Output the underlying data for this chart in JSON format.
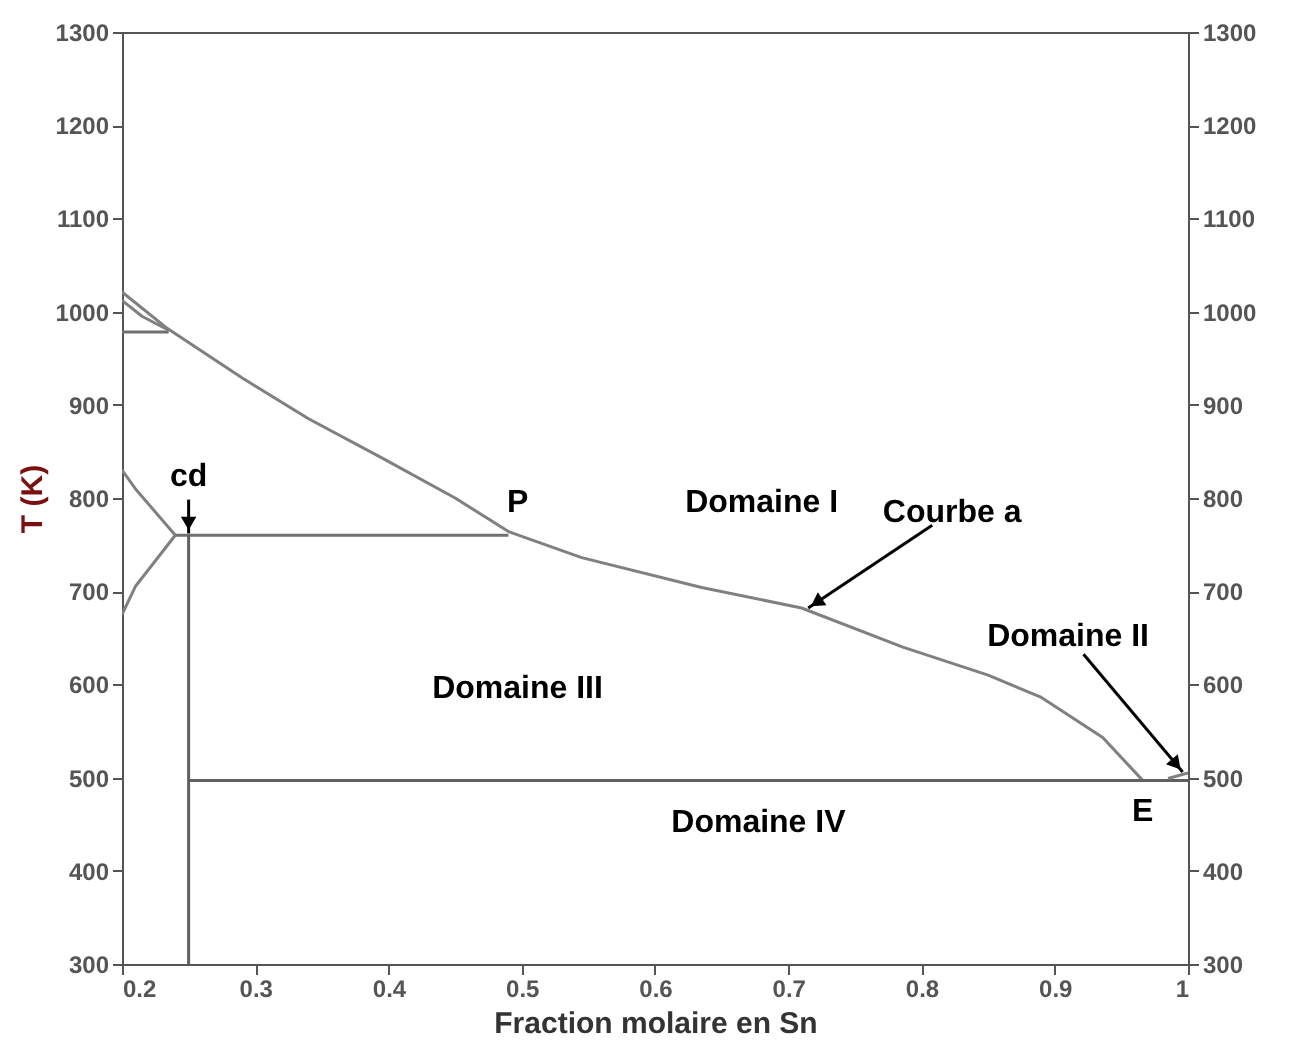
{
  "chart_data": {
    "type": "line",
    "xlabel": "Fraction molaire en Sn",
    "ylabel": "T (K)",
    "xlim": [
      0.2,
      1.0
    ],
    "xticks": [
      0.2,
      0.3,
      0.4,
      0.5,
      0.6,
      0.7,
      0.8,
      0.9,
      1
    ],
    "ylim": [
      300,
      1300
    ],
    "yticks": [
      300,
      400,
      500,
      600,
      700,
      800,
      900,
      1000,
      1100,
      1200,
      1300
    ],
    "y2lim": [
      300,
      1300
    ],
    "y2ticks": [
      300,
      400,
      500,
      600,
      700,
      800,
      900,
      1000,
      1100,
      1200,
      1300
    ],
    "grid": false,
    "series": [
      {
        "color": "#808080",
        "x": [
          0.2,
          0.233,
          0.29,
          0.34,
          0.395,
          0.45,
          0.49,
          0.545,
          0.635,
          0.71,
          0.786,
          0.85,
          0.89,
          0.936,
          0.966
        ],
        "values": [
          1021,
          983,
          929,
          885,
          843,
          800,
          764,
          736,
          704,
          682,
          640,
          610,
          586,
          543,
          497
        ]
      },
      {
        "color": "#808080",
        "x": [
          0.2,
          0.215,
          0.235
        ],
        "values": [
          1012,
          995,
          980
        ]
      },
      {
        "color": "#707070",
        "x": [
          0.2,
          0.235
        ],
        "values": [
          978,
          978
        ]
      },
      {
        "color": "#808080",
        "x": [
          0.2,
          0.21,
          0.24
        ],
        "values": [
          830,
          810,
          760
        ]
      },
      {
        "color": "#808080",
        "x": [
          0.2,
          0.21,
          0.24
        ],
        "values": [
          675,
          705,
          760
        ]
      },
      {
        "color": "#707070",
        "x": [
          0.24,
          0.49
        ],
        "values": [
          760,
          760
        ]
      },
      {
        "color": "#606060",
        "x": [
          0.25,
          0.25
        ],
        "values": [
          760,
          300
        ]
      },
      {
        "color": "#606060",
        "x": [
          0.25,
          1.0
        ],
        "values": [
          497,
          497
        ]
      },
      {
        "color": "#808080",
        "x": [
          0.985,
          1.0
        ],
        "values": [
          499,
          505
        ]
      }
    ],
    "annotations": [
      {
        "text": "cd",
        "x": 0.25,
        "y": 762
      },
      {
        "text": "P",
        "x": 0.49,
        "y": 762
      },
      "Domaine I",
      {
        "text": "Courbe a",
        "x": 0.715,
        "y": 682
      },
      {
        "text": "Domaine II",
        "x": 0.996,
        "y": 506
      },
      "Domaine III",
      "Domaine IV",
      {
        "text": "E",
        "x": 0.97,
        "y": 497
      }
    ]
  }
}
